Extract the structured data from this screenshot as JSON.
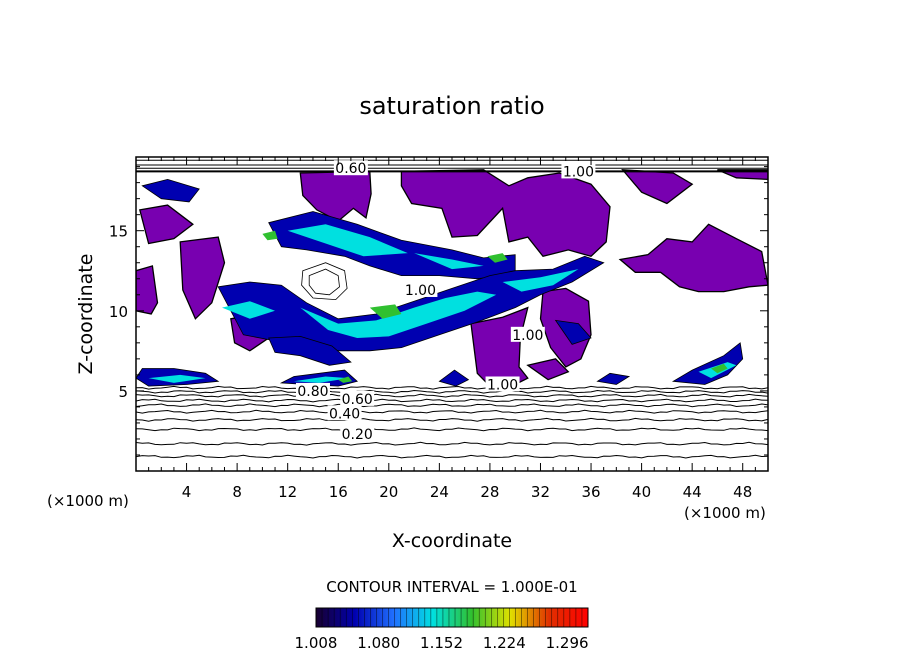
{
  "chart_data": {
    "type": "heatmap",
    "title": "saturation ratio",
    "xlabel": "X-coordinate",
    "ylabel": "Z-coordinate",
    "x_unit": "(×1000 m)",
    "z_unit": "(×1000 m)",
    "xlim": [
      0,
      50
    ],
    "ylim": [
      0,
      19.6
    ],
    "x_ticks": [
      4,
      8,
      12,
      16,
      20,
      24,
      28,
      32,
      36,
      40,
      44,
      48
    ],
    "y_ticks": [
      5,
      10,
      15
    ],
    "contour_interval_text": "CONTOUR INTERVAL = 1.000E-01",
    "colorbar": {
      "min": 1.008,
      "max": 1.32,
      "labels": [
        "1.008",
        "1.080",
        "1.152",
        "1.224",
        "1.296"
      ],
      "label_values": [
        1.008,
        1.08,
        1.152,
        1.224,
        1.296
      ],
      "colors": [
        "#180030",
        "#0000b0",
        "#2070ff",
        "#00e0e0",
        "#30c030",
        "#e0e000",
        "#e03000",
        "#ff0000"
      ]
    },
    "contour_labels": [
      {
        "text": "0.20",
        "x": 17.5,
        "y": 2.3
      },
      {
        "text": "0.40",
        "x": 16.5,
        "y": 3.6
      },
      {
        "text": "0.60",
        "x": 17.5,
        "y": 4.5
      },
      {
        "text": "0.80",
        "x": 14.0,
        "y": 5.0
      },
      {
        "text": "0.60",
        "x": 17.0,
        "y": 18.9
      },
      {
        "text": "1.00",
        "x": 29.0,
        "y": 5.4
      },
      {
        "text": "1.00",
        "x": 22.5,
        "y": 11.3
      },
      {
        "text": "1.00",
        "x": 31.0,
        "y": 8.5
      },
      {
        "text": "1.00",
        "x": 35.0,
        "y": 18.7
      }
    ],
    "layer_contours_z": [
      0.9,
      1.7,
      2.6,
      3.2,
      3.7,
      4.1,
      4.4,
      4.7,
      4.95,
      5.2
    ],
    "top_contours_z": [
      18.7,
      18.9,
      19.1,
      19.4
    ],
    "supersaturated_regions": [
      {
        "label": "purple",
        "color": "#7800b0",
        "outline": [
          [
            13,
            18.6
          ],
          [
            18.5,
            18.7
          ],
          [
            18.6,
            17.3
          ],
          [
            18.2,
            15.8
          ],
          [
            17.2,
            16.4
          ],
          [
            16,
            15.6
          ],
          [
            14.3,
            16.3
          ],
          [
            13.2,
            17.2
          ]
        ]
      },
      {
        "label": "purple",
        "color": "#7800b0",
        "outline": [
          [
            21,
            18.7
          ],
          [
            27.5,
            18.8
          ],
          [
            29.5,
            17.8
          ],
          [
            31,
            18.3
          ],
          [
            33.5,
            18.6
          ],
          [
            36,
            17.9
          ],
          [
            37.5,
            16.5
          ],
          [
            37.2,
            14.3
          ],
          [
            36,
            13.4
          ],
          [
            34.2,
            13.8
          ],
          [
            32.2,
            13.4
          ],
          [
            31,
            14.6
          ],
          [
            29.5,
            14.3
          ],
          [
            29,
            16.4
          ],
          [
            27,
            14.7
          ],
          [
            25,
            14.6
          ],
          [
            24.2,
            16.4
          ],
          [
            21.8,
            16.7
          ],
          [
            21,
            17.8
          ]
        ]
      },
      {
        "label": "purple",
        "color": "#7800b0",
        "outline": [
          [
            38.5,
            18.8
          ],
          [
            42.5,
            18.6
          ],
          [
            44,
            17.9
          ],
          [
            42,
            16.7
          ],
          [
            40,
            17.4
          ]
        ]
      },
      {
        "label": "purple",
        "color": "#7800b0",
        "outline": [
          [
            46,
            18.8
          ],
          [
            50,
            18.8
          ],
          [
            50,
            18.2
          ],
          [
            47.5,
            18.3
          ]
        ]
      },
      {
        "label": "purple",
        "color": "#7800b0",
        "outline": [
          [
            0.3,
            16.3
          ],
          [
            2.5,
            16.6
          ],
          [
            4.5,
            15.4
          ],
          [
            3,
            14.5
          ],
          [
            1,
            14.2
          ]
        ]
      },
      {
        "label": "purple",
        "color": "#7800b0",
        "outline": [
          [
            3.5,
            14.3
          ],
          [
            6.5,
            14.6
          ],
          [
            7,
            13
          ],
          [
            6,
            10.5
          ],
          [
            4.7,
            9.5
          ],
          [
            3.7,
            11.3
          ]
        ]
      },
      {
        "label": "purple",
        "color": "#7800b0",
        "outline": [
          [
            0,
            12.5
          ],
          [
            1.3,
            12.8
          ],
          [
            1.7,
            10.5
          ],
          [
            1.2,
            9.8
          ],
          [
            0,
            10
          ]
        ]
      },
      {
        "label": "purple",
        "color": "#7800b0",
        "outline": [
          [
            38.3,
            13.2
          ],
          [
            40.5,
            13.5
          ],
          [
            42,
            14.5
          ],
          [
            44,
            14.3
          ],
          [
            45.3,
            15.4
          ],
          [
            47.5,
            14.5
          ],
          [
            49.5,
            13.7
          ],
          [
            50,
            11.6
          ],
          [
            48.5,
            11.5
          ],
          [
            46.5,
            11.2
          ],
          [
            44.5,
            11.2
          ],
          [
            43,
            11.5
          ],
          [
            41.5,
            12.4
          ],
          [
            39.5,
            12.4
          ]
        ]
      },
      {
        "label": "purple",
        "color": "#7800b0",
        "outline": [
          [
            26.5,
            9.2
          ],
          [
            29,
            9.6
          ],
          [
            31,
            10.2
          ],
          [
            30.4,
            8.3
          ],
          [
            30.3,
            6.5
          ],
          [
            31,
            5.8
          ],
          [
            29.5,
            5.2
          ],
          [
            28,
            5.3
          ],
          [
            27,
            6.1
          ]
        ]
      },
      {
        "label": "purple",
        "color": "#7800b0",
        "outline": [
          [
            32.2,
            11.2
          ],
          [
            34,
            11.4
          ],
          [
            35.8,
            10.6
          ],
          [
            36,
            8.5
          ],
          [
            35.2,
            7
          ],
          [
            34,
            6.5
          ],
          [
            32.8,
            7.7
          ],
          [
            32,
            9.5
          ]
        ]
      },
      {
        "label": "purple",
        "color": "#7800b0",
        "outline": [
          [
            31,
            6.6
          ],
          [
            33.2,
            7
          ],
          [
            34.2,
            6.2
          ],
          [
            32.6,
            5.7
          ]
        ]
      },
      {
        "label": "purple",
        "color": "#7800b0",
        "outline": [
          [
            7.5,
            9.5
          ],
          [
            9.5,
            9.8
          ],
          [
            10.5,
            8.3
          ],
          [
            9,
            7.5
          ],
          [
            7.8,
            8
          ]
        ]
      }
    ],
    "cloud_bands": [
      {
        "level": 1.05,
        "outline": [
          [
            10.5,
            15.5
          ],
          [
            14,
            16.2
          ],
          [
            17.5,
            15.4
          ],
          [
            21,
            14.4
          ],
          [
            25,
            13.8
          ],
          [
            27.5,
            13.3
          ],
          [
            30,
            13.5
          ],
          [
            30,
            12.3
          ],
          [
            27,
            12
          ],
          [
            24,
            12.2
          ],
          [
            21,
            12.2
          ],
          [
            18.5,
            12.8
          ],
          [
            16.5,
            13.4
          ],
          [
            13.5,
            13.8
          ],
          [
            11.5,
            14
          ]
        ]
      },
      {
        "level": 1.05,
        "outline": [
          [
            6.5,
            11.5
          ],
          [
            9,
            11.8
          ],
          [
            11.5,
            11.6
          ],
          [
            13.5,
            10.5
          ],
          [
            16,
            9.5
          ],
          [
            19,
            9.8
          ],
          [
            22,
            10.6
          ],
          [
            25,
            11.4
          ],
          [
            28,
            12.2
          ],
          [
            30,
            12.5
          ],
          [
            33,
            12.6
          ],
          [
            35.5,
            13.4
          ],
          [
            37,
            13
          ],
          [
            34.5,
            11.8
          ],
          [
            32,
            11
          ],
          [
            30,
            10.2
          ],
          [
            27,
            9.3
          ],
          [
            24,
            8.5
          ],
          [
            21,
            7.7
          ],
          [
            18.5,
            7.5
          ],
          [
            16,
            7.5
          ],
          [
            13,
            8
          ],
          [
            10.5,
            8.2
          ],
          [
            8.5,
            8.5
          ]
        ]
      },
      {
        "level": 1.05,
        "outline": [
          [
            10.5,
            8.3
          ],
          [
            13,
            8.4
          ],
          [
            15.5,
            7.8
          ],
          [
            17,
            6.8
          ],
          [
            15.3,
            6.6
          ],
          [
            13,
            7.2
          ],
          [
            11,
            7.4
          ]
        ]
      },
      {
        "level": 1.05,
        "outline": [
          [
            0,
            5.8
          ],
          [
            0.5,
            6.4
          ],
          [
            3,
            6.4
          ],
          [
            5.5,
            6.1
          ],
          [
            6.5,
            5.6
          ],
          [
            4,
            5.4
          ],
          [
            1,
            5.3
          ]
        ]
      },
      {
        "level": 1.05,
        "outline": [
          [
            11.5,
            5.5
          ],
          [
            12.5,
            5.9
          ],
          [
            14.5,
            6.1
          ],
          [
            16.5,
            6.3
          ],
          [
            17.5,
            5.6
          ],
          [
            16,
            5.3
          ],
          [
            13.5,
            5.4
          ]
        ]
      },
      {
        "level": 1.05,
        "outline": [
          [
            24,
            5.6
          ],
          [
            25.2,
            6.3
          ],
          [
            26.3,
            5.7
          ],
          [
            25.3,
            5.3
          ]
        ]
      },
      {
        "level": 1.05,
        "outline": [
          [
            36.5,
            5.6
          ],
          [
            37.5,
            6.1
          ],
          [
            39,
            5.9
          ],
          [
            38,
            5.4
          ]
        ]
      },
      {
        "level": 1.05,
        "outline": [
          [
            42.5,
            5.6
          ],
          [
            44,
            6.3
          ],
          [
            46.5,
            7.2
          ],
          [
            47.8,
            8
          ],
          [
            48,
            7
          ],
          [
            46.8,
            6
          ],
          [
            45,
            5.4
          ]
        ]
      },
      {
        "level": 1.05,
        "outline": [
          [
            0.5,
            17.8
          ],
          [
            2.5,
            18.2
          ],
          [
            5,
            17.6
          ],
          [
            4.2,
            16.8
          ],
          [
            2,
            17
          ]
        ]
      },
      {
        "level": 1.05,
        "outline": [
          [
            33.2,
            9.4
          ],
          [
            35,
            9.2
          ],
          [
            36,
            8.3
          ],
          [
            34.5,
            7.9
          ]
        ]
      }
    ],
    "cloud_cores": [
      {
        "level": 1.12,
        "outline": [
          [
            12,
            15
          ],
          [
            15,
            15.4
          ],
          [
            18.5,
            14.6
          ],
          [
            21.5,
            13.6
          ],
          [
            18,
            13.4
          ],
          [
            15,
            14.2
          ]
        ]
      },
      {
        "level": 1.12,
        "outline": [
          [
            22,
            13.6
          ],
          [
            25,
            13.2
          ],
          [
            27.5,
            12.8
          ],
          [
            25,
            12.6
          ]
        ]
      },
      {
        "level": 1.12,
        "outline": [
          [
            13,
            10.2
          ],
          [
            16,
            9.2
          ],
          [
            19,
            9.4
          ],
          [
            22,
            10.2
          ],
          [
            24.5,
            10.8
          ],
          [
            27,
            11.2
          ],
          [
            28.5,
            11
          ],
          [
            26,
            10
          ],
          [
            23,
            9.2
          ],
          [
            20,
            8.4
          ],
          [
            17.5,
            8.3
          ],
          [
            15.2,
            8.8
          ]
        ]
      },
      {
        "level": 1.12,
        "outline": [
          [
            29,
            11.8
          ],
          [
            32,
            12.1
          ],
          [
            35,
            12.6
          ],
          [
            33,
            11.6
          ],
          [
            30.5,
            11.2
          ]
        ]
      },
      {
        "level": 1.12,
        "outline": [
          [
            1,
            5.8
          ],
          [
            3.5,
            6
          ],
          [
            5.5,
            5.8
          ],
          [
            3,
            5.5
          ]
        ]
      },
      {
        "level": 1.12,
        "outline": [
          [
            12.5,
            5.6
          ],
          [
            15,
            5.9
          ],
          [
            16.8,
            5.8
          ],
          [
            14.5,
            5.5
          ]
        ]
      },
      {
        "level": 1.12,
        "outline": [
          [
            44.5,
            6.2
          ],
          [
            46.8,
            6.8
          ],
          [
            47.5,
            6.6
          ],
          [
            45.5,
            5.8
          ]
        ]
      },
      {
        "level": 1.12,
        "outline": [
          [
            6.8,
            10.2
          ],
          [
            9,
            10.6
          ],
          [
            11,
            10
          ],
          [
            9,
            9.5
          ]
        ]
      }
    ],
    "cloud_peaks": [
      {
        "level": 1.19,
        "outline": [
          [
            18.5,
            10.2
          ],
          [
            20.5,
            10.4
          ],
          [
            21,
            9.8
          ],
          [
            19.5,
            9.5
          ]
        ]
      },
      {
        "level": 1.19,
        "outline": [
          [
            27.8,
            13.4
          ],
          [
            29,
            13.6
          ],
          [
            29.4,
            13.2
          ],
          [
            28.4,
            13
          ]
        ]
      },
      {
        "level": 1.19,
        "outline": [
          [
            45.5,
            6.4
          ],
          [
            46.5,
            6.7
          ],
          [
            46.8,
            6.4
          ],
          [
            46,
            6.1
          ]
        ]
      },
      {
        "level": 1.19,
        "outline": [
          [
            16,
            5.7
          ],
          [
            16.8,
            5.9
          ],
          [
            17.1,
            5.6
          ],
          [
            16.4,
            5.5
          ]
        ]
      },
      {
        "level": 1.19,
        "outline": [
          [
            10,
            14.8
          ],
          [
            11,
            15
          ],
          [
            11.2,
            14.5
          ],
          [
            10.4,
            14.4
          ]
        ]
      }
    ],
    "subsaturated_contours": [
      {
        "outline": [
          [
            13.2,
            12.5
          ],
          [
            15,
            13
          ],
          [
            16.5,
            12.5
          ],
          [
            16.7,
            11.4
          ],
          [
            15.8,
            10.7
          ],
          [
            14,
            10.8
          ],
          [
            13.1,
            11.6
          ]
        ]
      },
      {
        "outline": [
          [
            13.7,
            12.2
          ],
          [
            15,
            12.6
          ],
          [
            16,
            12.2
          ],
          [
            16.1,
            11.5
          ],
          [
            15.3,
            11
          ],
          [
            14.2,
            11.1
          ],
          [
            13.7,
            11.6
          ]
        ]
      }
    ]
  }
}
